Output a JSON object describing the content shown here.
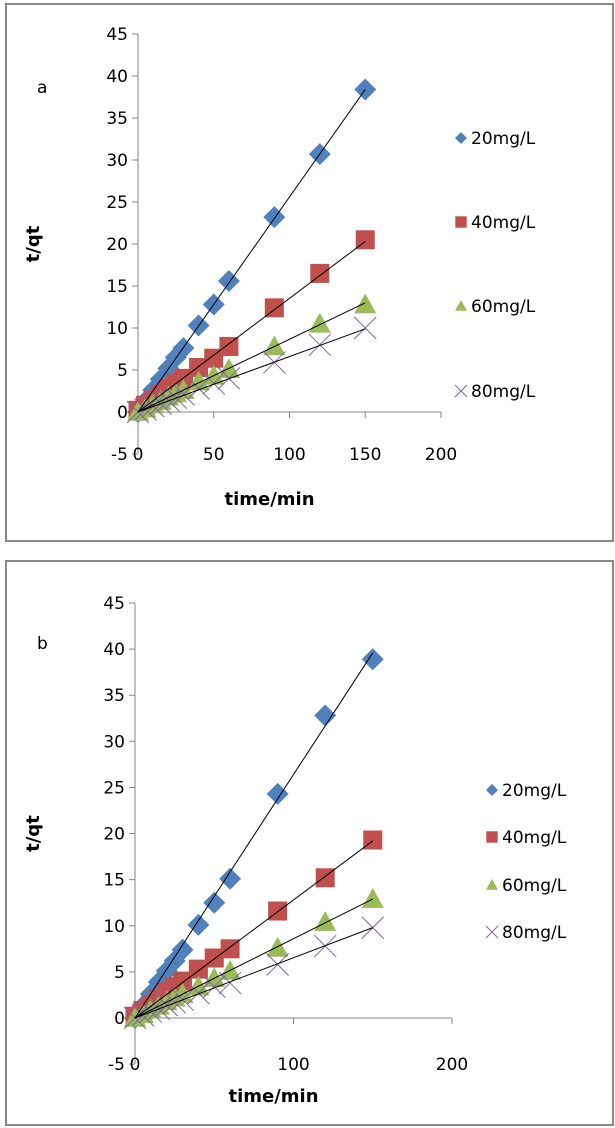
{
  "chart_data": [
    {
      "type": "scatter",
      "panel_label": "a",
      "xlabel": "time/min",
      "ylabel": "t/qt",
      "xlim": [
        0,
        200
      ],
      "ylim": [
        -5,
        45
      ],
      "xticks": [
        0,
        50,
        100,
        150,
        200
      ],
      "yticks": [
        -5,
        0,
        5,
        10,
        15,
        20,
        25,
        30,
        35,
        40,
        45
      ],
      "grid": false,
      "legend_position": "right",
      "x": [
        0,
        5,
        10,
        15,
        20,
        25,
        30,
        40,
        50,
        60,
        90,
        120,
        150
      ],
      "series": [
        {
          "name": "20mg/L",
          "marker": "diamond",
          "color": "#4F81BD",
          "values": [
            0,
            1.3,
            2.6,
            3.9,
            5.2,
            6.5,
            7.6,
            10.3,
            12.8,
            15.6,
            23.2,
            30.7,
            38.4
          ],
          "trendline": [
            0,
            38.4
          ]
        },
        {
          "name": "40mg/L",
          "marker": "square",
          "color": "#C0504D",
          "values": [
            0.2,
            0.8,
            1.4,
            2.1,
            2.8,
            3.4,
            4.0,
            5.3,
            6.4,
            7.8,
            12.4,
            16.5,
            20.5
          ],
          "trendline": [
            0,
            20.3
          ]
        },
        {
          "name": "60mg/L",
          "marker": "triangle",
          "color": "#9BBB59",
          "values": [
            0,
            0.4,
            0.9,
            1.3,
            1.8,
            2.2,
            2.6,
            3.6,
            4.3,
            5.1,
            7.8,
            10.5,
            12.8
          ],
          "trendline": [
            0,
            13.0
          ]
        },
        {
          "name": "80mg/L",
          "marker": "x",
          "color": "#8064A2",
          "values": [
            0,
            0.3,
            0.7,
            1.0,
            1.4,
            1.7,
            2.1,
            2.8,
            3.4,
            4.0,
            5.9,
            8.0,
            10.0
          ],
          "trendline": [
            0,
            9.9
          ]
        }
      ]
    },
    {
      "type": "scatter",
      "panel_label": "b",
      "xlabel": "time/min",
      "ylabel": "t/qt",
      "xlim": [
        0,
        200
      ],
      "ylim": [
        -5,
        45
      ],
      "xticks": [
        0,
        100,
        200
      ],
      "yticks": [
        -5,
        0,
        5,
        10,
        15,
        20,
        25,
        30,
        35,
        40,
        45
      ],
      "grid": false,
      "legend_position": "right",
      "x": [
        0,
        5,
        10,
        15,
        20,
        25,
        30,
        40,
        50,
        60,
        90,
        120,
        150
      ],
      "series": [
        {
          "name": "20mg/L",
          "marker": "diamond",
          "color": "#4F81BD",
          "values": [
            0,
            1.3,
            2.6,
            3.9,
            5.1,
            6.2,
            7.4,
            10.1,
            12.5,
            15.1,
            24.3,
            32.8,
            38.9
          ],
          "trendline": [
            0,
            39.6
          ]
        },
        {
          "name": "40mg/L",
          "marker": "square",
          "color": "#C0504D",
          "values": [
            0.2,
            0.8,
            1.4,
            2.1,
            2.8,
            3.4,
            4.0,
            5.3,
            6.5,
            7.5,
            11.6,
            15.2,
            19.3
          ],
          "trendline": [
            0,
            19.2
          ]
        },
        {
          "name": "60mg/L",
          "marker": "triangle",
          "color": "#9BBB59",
          "values": [
            0,
            0.4,
            0.9,
            1.3,
            1.8,
            2.2,
            2.6,
            3.4,
            4.3,
            5.1,
            7.6,
            10.4,
            12.9
          ],
          "trendline": [
            0,
            12.9
          ]
        },
        {
          "name": "80mg/L",
          "marker": "x",
          "color": "#8064A2",
          "values": [
            0,
            0.3,
            0.7,
            1.0,
            1.4,
            1.7,
            2.0,
            2.7,
            3.4,
            3.8,
            5.8,
            7.8,
            9.8
          ],
          "trendline": [
            0,
            9.8
          ]
        }
      ]
    }
  ]
}
